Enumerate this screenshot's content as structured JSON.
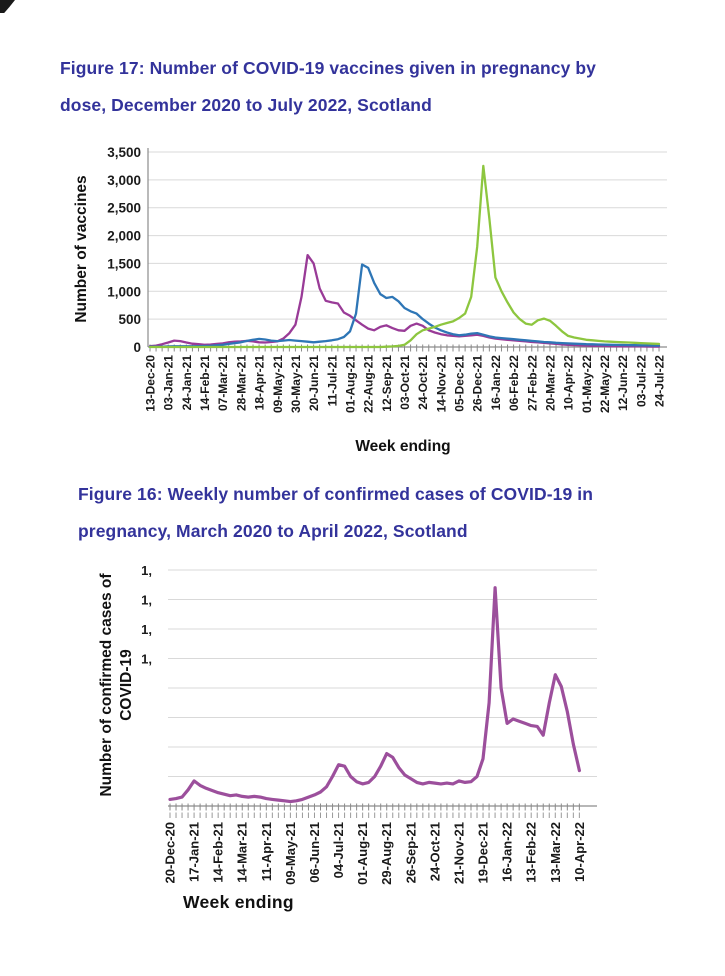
{
  "page": {
    "corner_mark": "true"
  },
  "chart_data": [
    {
      "type": "line",
      "figure": "Figure 17",
      "title": "Figure 17: Number of COVID-19 vaccines given in pregnancy by dose, December 2020 to July 2022, Scotland",
      "title_lines": [
        "Figure 17: Number of COVID-19 vaccines given in pregnancy by",
        "dose, December 2020 to July 2022, Scotland"
      ],
      "xlabel": "Week ending",
      "ylabel": "Number of vaccines",
      "ylim": [
        0,
        3500
      ],
      "y_tick_step": 500,
      "grid": "horizontal",
      "legend_position": "none",
      "n_points": 85,
      "x_interval": "weekly",
      "x_label_every": 3,
      "y_ticks": [
        {
          "label": "3,500",
          "value": 3500
        },
        {
          "label": "3,000",
          "value": 3000
        },
        {
          "label": "2,500",
          "value": 2500
        },
        {
          "label": "2,000",
          "value": 2000
        },
        {
          "label": "1,500",
          "value": 1500
        },
        {
          "label": "1,000",
          "value": 1000
        },
        {
          "label": "500",
          "value": 500
        },
        {
          "label": "0",
          "value": 0
        }
      ],
      "x_tick_labels": [
        "13-Dec-20",
        "03-Jan-21",
        "24-Jan-21",
        "14-Feb-21",
        "07-Mar-21",
        "28-Mar-21",
        "18-Apr-21",
        "09-May-21",
        "30-May-21",
        "20-Jun-21",
        "11-Jul-21",
        "01-Aug-21",
        "22-Aug-21",
        "12-Sep-21",
        "03-Oct-21",
        "24-Oct-21",
        "14-Nov-21",
        "05-Dec-21",
        "26-Dec-21",
        "16-Jan-22",
        "06-Feb-22",
        "27-Feb-22",
        "20-Mar-22",
        "10-Apr-22",
        "01-May-22",
        "22-May-22",
        "12-Jun-22",
        "03-Jul-22",
        "24-Jul-22"
      ],
      "series": [
        {
          "name": "series-1-purple",
          "color": "#993B97",
          "values": [
            15,
            25,
            50,
            80,
            115,
            105,
            80,
            60,
            50,
            40,
            45,
            55,
            65,
            85,
            95,
            100,
            110,
            100,
            85,
            80,
            90,
            100,
            150,
            250,
            400,
            900,
            1650,
            1500,
            1050,
            830,
            800,
            780,
            620,
            560,
            480,
            400,
            330,
            300,
            360,
            390,
            340,
            300,
            290,
            380,
            420,
            380,
            300,
            260,
            230,
            210,
            200,
            190,
            200,
            210,
            220,
            200,
            170,
            150,
            140,
            130,
            120,
            110,
            100,
            90,
            85,
            75,
            65,
            55,
            45,
            40,
            35,
            30,
            25,
            22,
            20,
            18,
            15,
            14,
            12,
            11,
            10,
            10,
            9,
            8,
            8
          ]
        },
        {
          "name": "series-2-blue",
          "color": "#2E76B6",
          "values": [
            5,
            5,
            8,
            10,
            12,
            12,
            12,
            12,
            15,
            18,
            22,
            30,
            40,
            55,
            70,
            85,
            110,
            130,
            145,
            135,
            115,
            105,
            115,
            125,
            115,
            105,
            95,
            85,
            95,
            105,
            120,
            140,
            180,
            280,
            600,
            1480,
            1420,
            1150,
            950,
            880,
            900,
            820,
            700,
            640,
            600,
            500,
            420,
            350,
            300,
            260,
            230,
            210,
            220,
            240,
            250,
            220,
            190,
            170,
            160,
            150,
            140,
            130,
            120,
            110,
            100,
            90,
            85,
            75,
            70,
            65,
            60,
            55,
            50,
            48,
            45,
            42,
            40,
            38,
            36,
            34,
            32,
            30,
            28,
            26,
            25
          ]
        },
        {
          "name": "series-3-green",
          "color": "#8DC63F",
          "values": [
            0,
            0,
            0,
            0,
            0,
            0,
            0,
            0,
            0,
            0,
            0,
            0,
            0,
            0,
            0,
            0,
            0,
            0,
            0,
            0,
            0,
            0,
            0,
            0,
            0,
            0,
            0,
            0,
            0,
            0,
            0,
            0,
            0,
            0,
            0,
            0,
            0,
            0,
            0,
            5,
            10,
            20,
            40,
            120,
            230,
            300,
            330,
            360,
            400,
            430,
            460,
            520,
            600,
            900,
            1800,
            3250,
            2300,
            1250,
            1000,
            800,
            620,
            500,
            420,
            400,
            480,
            510,
            470,
            380,
            280,
            200,
            170,
            150,
            130,
            120,
            110,
            100,
            95,
            90,
            85,
            80,
            75,
            70,
            65,
            60,
            55
          ]
        }
      ]
    },
    {
      "type": "line",
      "figure": "Figure 16",
      "title": "Figure 16: Weekly number of confirmed cases of COVID-19 in pregnancy, March 2020 to April 2022, Scotland",
      "title_lines": [
        "Figure 16: Weekly number of confirmed cases of COVID-19 in",
        "pregnancy, March 2020 to April 2022, Scotland"
      ],
      "xlabel": "Week ending",
      "ylabel": "Number of confirmed cases of COVID-19",
      "ylabel_lines": [
        "Number of confirmed cases of",
        "COVID-19"
      ],
      "ylim": [
        0,
        1600
      ],
      "y_tick_step": 200,
      "grid": "horizontal",
      "legend_position": "none",
      "n_points": 69,
      "x_interval": "weekly",
      "x_label_every": 4,
      "y_ticks": [
        {
          "label": "1,",
          "value": 1600
        },
        {
          "label": "1,",
          "value": 1400
        },
        {
          "label": "1,",
          "value": 1200
        },
        {
          "label": "1,",
          "value": 1000
        }
      ],
      "x_tick_labels": [
        "20-Dec-20",
        "17-Jan-21",
        "14-Feb-21",
        "14-Mar-21",
        "11-Apr-21",
        "09-May-21",
        "06-Jun-21",
        "04-Jul-21",
        "01-Aug-21",
        "29-Aug-21",
        "26-Sep-21",
        "24-Oct-21",
        "21-Nov-21",
        "19-Dec-21",
        "16-Jan-22",
        "13-Feb-22",
        "13-Mar-22",
        "10-Apr-22"
      ],
      "series": [
        {
          "name": "confirmed-cases-purple",
          "color": "#9C4F9C",
          "values": [
            45,
            50,
            60,
            110,
            170,
            140,
            120,
            105,
            90,
            80,
            70,
            75,
            65,
            60,
            65,
            60,
            50,
            45,
            40,
            35,
            30,
            35,
            45,
            60,
            75,
            95,
            130,
            200,
            280,
            270,
            200,
            165,
            150,
            160,
            200,
            270,
            355,
            330,
            260,
            210,
            185,
            160,
            150,
            160,
            155,
            150,
            155,
            150,
            170,
            160,
            165,
            200,
            320,
            700,
            1480,
            800,
            560,
            590,
            575,
            560,
            545,
            540,
            480,
            700,
            890,
            810,
            640,
            420,
            240
          ]
        }
      ]
    }
  ]
}
